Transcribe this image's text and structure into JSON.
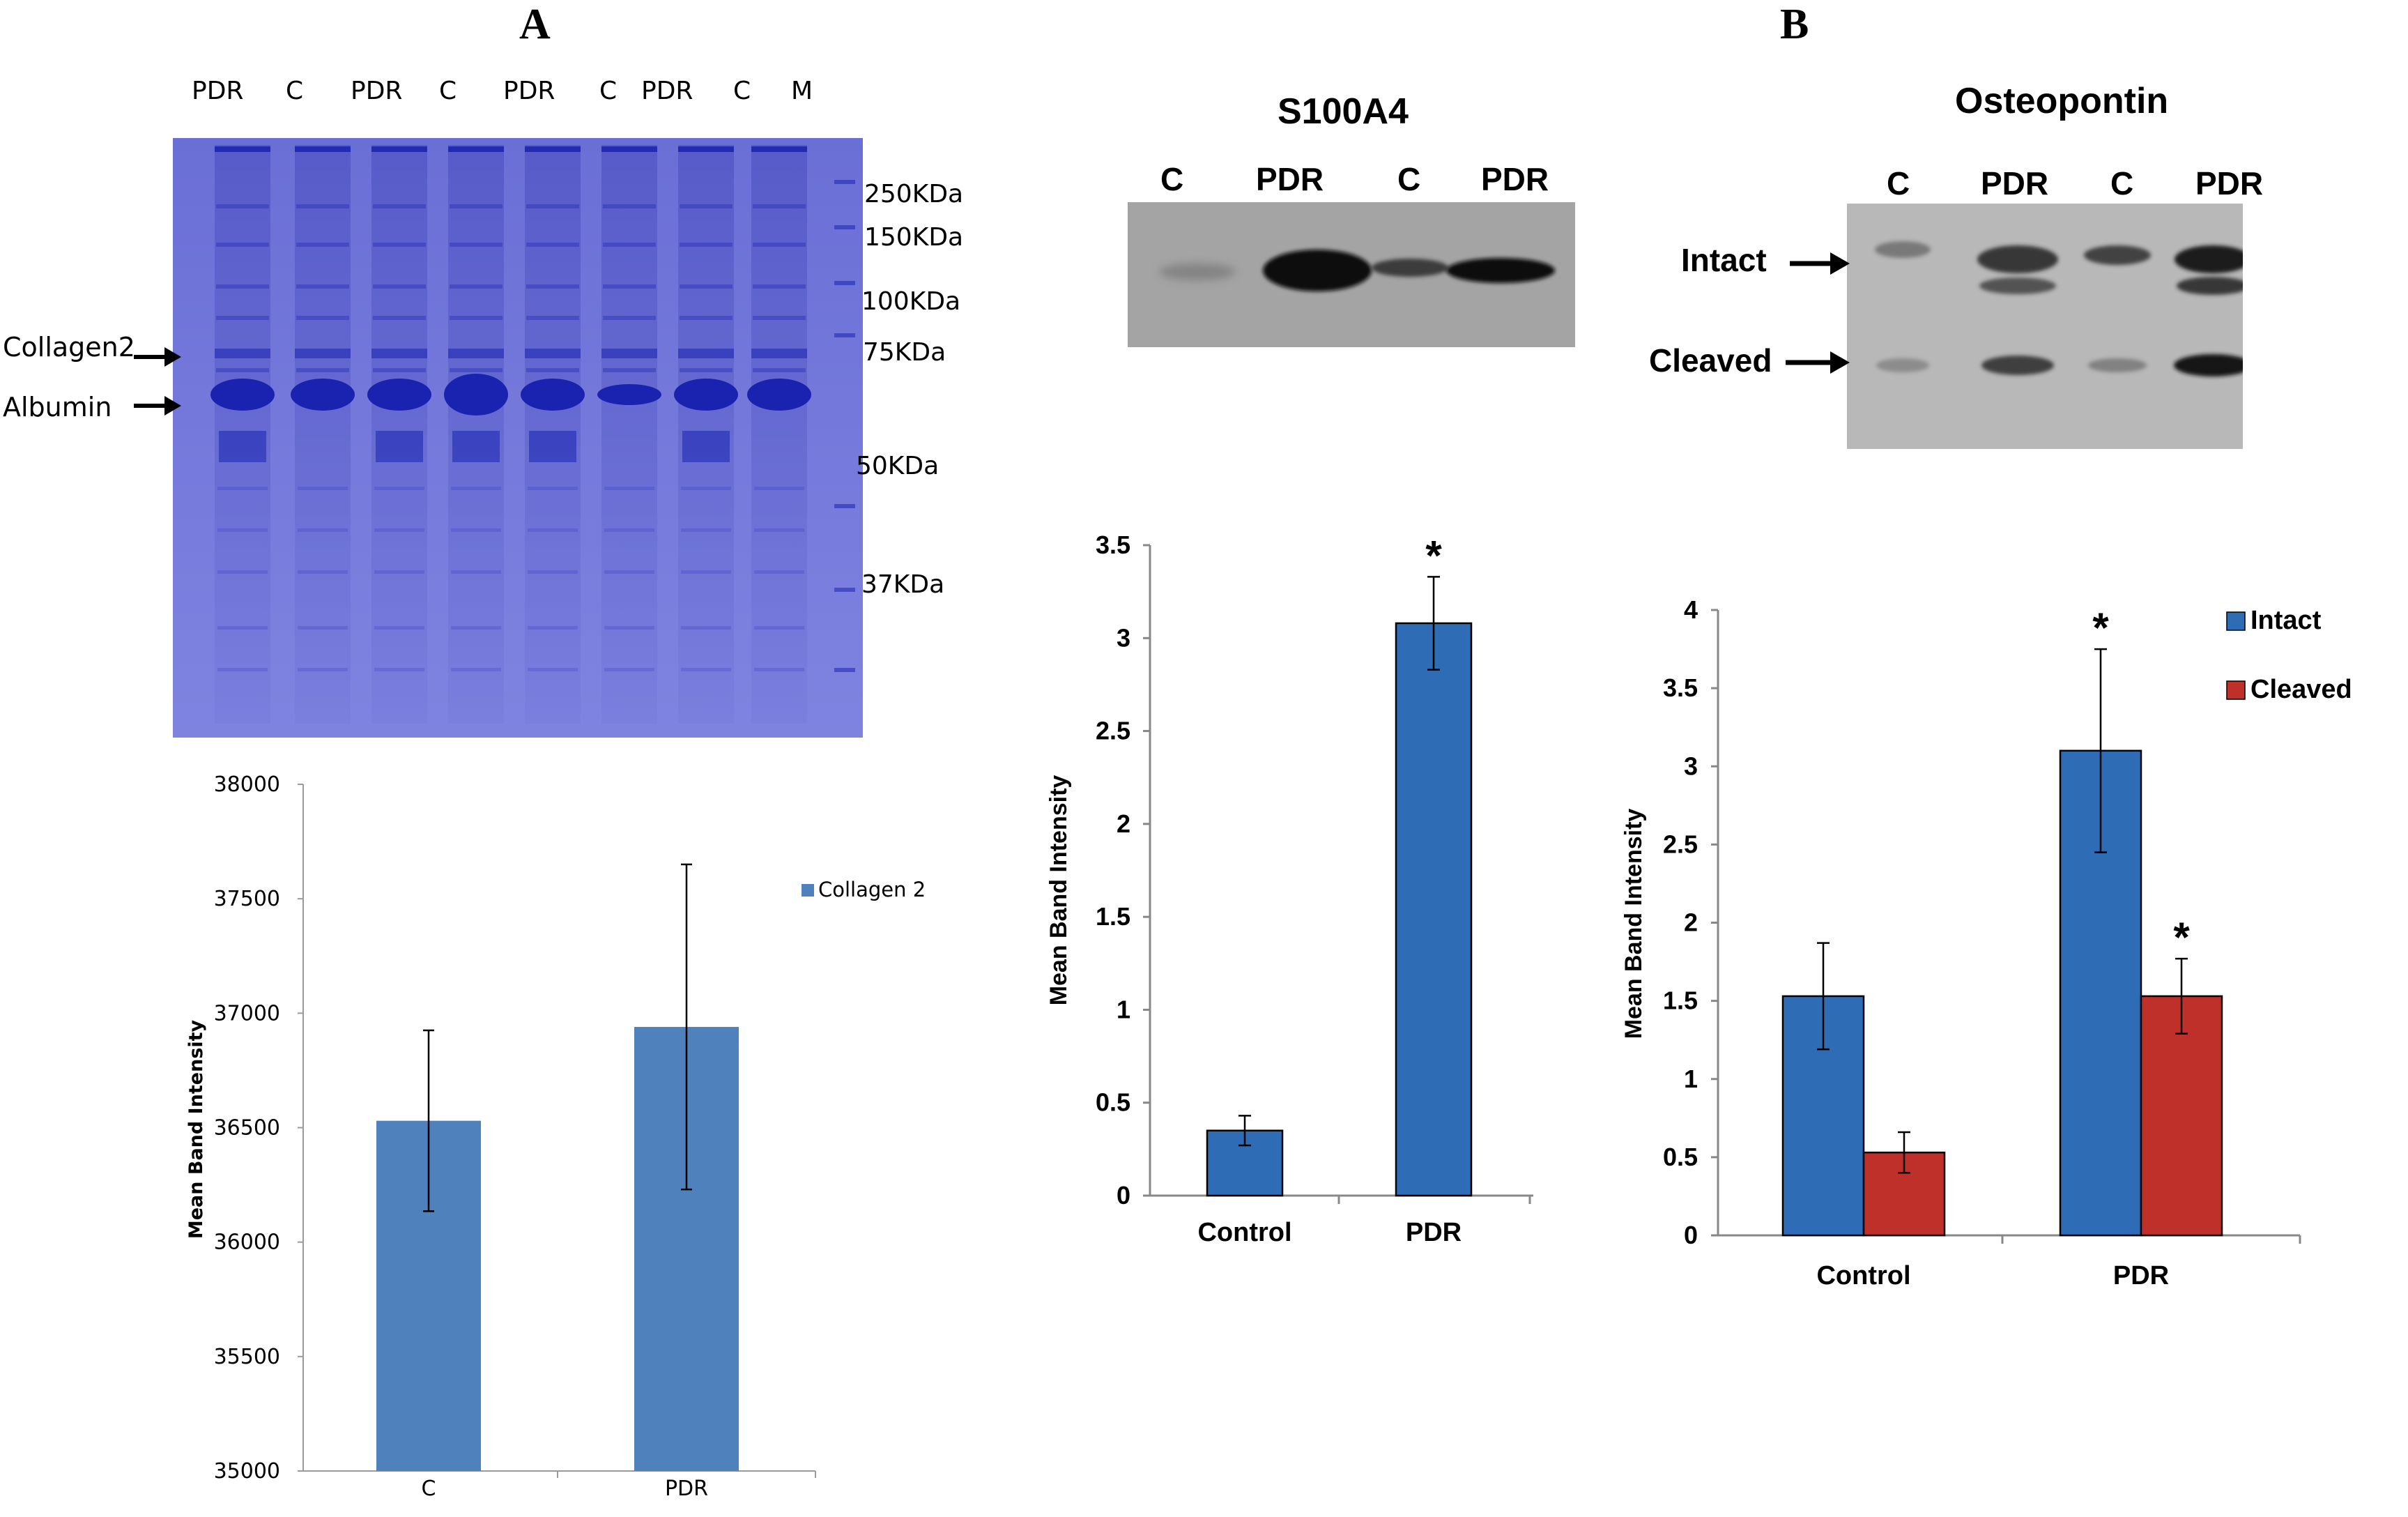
{
  "panel_labels": [
    "A",
    "B"
  ],
  "gel": {
    "lane_labels": [
      "PDR",
      "C",
      "PDR",
      "C",
      "PDR",
      "C",
      "PDR",
      "C",
      "M"
    ],
    "markers": [
      "250KDa",
      "150KDa",
      "100KDa",
      "75KDa",
      "50KDa",
      "37KDa"
    ],
    "band_labels": [
      "Collagen2",
      "Albumin"
    ],
    "colors": {
      "background": "#6f73d8",
      "band": "#1a22b0"
    }
  },
  "s100a4_blot": {
    "title": "S100A4",
    "lane_labels": [
      "C",
      "PDR",
      "C",
      "PDR"
    ]
  },
  "osteopontin_blot": {
    "title": "Osteopontin",
    "lane_labels": [
      "C",
      "PDR",
      "C",
      "PDR"
    ],
    "band_labels": [
      "Intact",
      "Cleaved"
    ]
  },
  "chart_data": [
    {
      "type": "bar",
      "title": "",
      "xlabel": "",
      "ylabel": "Mean Band Intensity",
      "categories": [
        "C",
        "PDR"
      ],
      "series": [
        {
          "name": "Collagen 2",
          "values": [
            36530,
            36940
          ],
          "errors": [
            395,
            710
          ],
          "color": "#4f81bd"
        }
      ],
      "ylim": [
        35000,
        38000
      ],
      "yticks": [
        35000,
        35500,
        36000,
        36500,
        37000,
        37500,
        38000
      ],
      "legend": "right",
      "grid": false
    },
    {
      "type": "bar",
      "title": "",
      "xlabel": "",
      "ylabel": "Mean Band Intensity",
      "categories": [
        "Control",
        "PDR"
      ],
      "series": [
        {
          "name": "",
          "values": [
            0.35,
            3.08
          ],
          "errors": [
            0.08,
            0.25
          ],
          "color": "#2e6db5"
        }
      ],
      "annotations": [
        "",
        "*"
      ],
      "ylim": [
        0,
        3.5
      ],
      "yticks": [
        "0",
        "0.5",
        "1",
        "1.5",
        "2",
        "2.5",
        "3",
        "3.5"
      ],
      "legend": "none",
      "grid": false
    },
    {
      "type": "bar",
      "title": "",
      "xlabel": "",
      "ylabel": "Mean Band Intensity",
      "categories": [
        "Control",
        "PDR"
      ],
      "series": [
        {
          "name": "Intact",
          "values": [
            1.53,
            3.1
          ],
          "errors": [
            0.34,
            0.65
          ],
          "color": "#2e6db5",
          "annotations": [
            "",
            "*"
          ]
        },
        {
          "name": "Cleaved",
          "values": [
            0.53,
            1.53
          ],
          "errors": [
            0.13,
            0.24
          ],
          "color": "#c0302b",
          "annotations": [
            "",
            "*"
          ]
        }
      ],
      "ylim": [
        0,
        4
      ],
      "yticks": [
        "0",
        "0.5",
        "1",
        "1.5",
        "2",
        "2.5",
        "3",
        "3.5",
        "4"
      ],
      "legend": "top-right",
      "grid": false
    }
  ]
}
